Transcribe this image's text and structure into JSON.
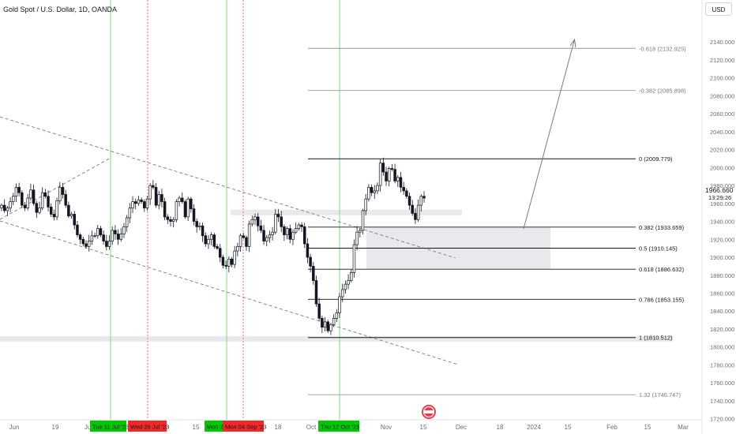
{
  "header": {
    "title": "Gold Spot / U.S. Dollar, 1D, OANDA"
  },
  "axis": {
    "currency_button": "USD"
  },
  "price_tag": {
    "price": "1966.660",
    "countdown": "13:29:26"
  },
  "colors": {
    "up_candle": "#ffffff",
    "down_candle": "#131722",
    "zone": "#e8e9ec",
    "green_marker": "#00c800",
    "red_marker": "#f02828"
  },
  "icons": [
    "tv-logo-icon"
  ],
  "chart_data": {
    "type": "candlestick",
    "symbol": "Gold Spot / U.S. Dollar",
    "interval": "1D",
    "ylim": [
      1710,
      2160
    ],
    "y_ticks": [
      "2140.000",
      "2120.000",
      "2100.000",
      "2080.000",
      "2060.000",
      "2040.000",
      "2020.000",
      "2000.000",
      "1980.000",
      "1960.000",
      "1940.000",
      "1920.000",
      "1900.000",
      "1880.000",
      "1860.000",
      "1840.000",
      "1820.000",
      "1800.000",
      "1780.000",
      "1760.000",
      "1740.000",
      "1720.000"
    ],
    "x_ticks": [
      "Jun",
      "19",
      "Jul",
      "15",
      "Aug",
      "18",
      "Oct",
      "Nov",
      "15",
      "Dec",
      "18",
      "2024",
      "15",
      "Feb",
      "15",
      "Mar"
    ],
    "date_markers": [
      {
        "label": "Tue 11 Jul '23",
        "color": "green"
      },
      {
        "label": "Wed 26 Jul '23",
        "color": "red"
      },
      {
        "label": "Mon 21 Aug '23",
        "color": "green"
      },
      {
        "label": "Mon 04 Sep '23",
        "color": "red"
      },
      {
        "label": "Thu 12 Oct '23",
        "color": "green"
      }
    ],
    "fib_levels": [
      {
        "ratio": "-0.618",
        "price": 2132.925,
        "label": "-0.618 (2132.925)"
      },
      {
        "ratio": "-0.382",
        "price": 2085.898,
        "label": "-0.382 (2085.898)"
      },
      {
        "ratio": "0",
        "price": 2009.779,
        "label": "0 (2009.779)"
      },
      {
        "ratio": "0.382",
        "price": 1933.659,
        "label": "0.382 (1933.659)"
      },
      {
        "ratio": "0.5",
        "price": 1910.145,
        "label": "0.5 (1910.145)"
      },
      {
        "ratio": "0.618",
        "price": 1886.632,
        "label": "0.618 (1886.632)"
      },
      {
        "ratio": "0.786",
        "price": 1853.155,
        "label": "0.786 (1853.155)"
      },
      {
        "ratio": "1",
        "price": 1810.512,
        "label": "1 (1810.512)"
      },
      {
        "ratio": "1.32",
        "price": 1746.747,
        "label": "1.32 (1746.747)"
      }
    ],
    "zones": [
      {
        "from": 1886.632,
        "to": 1933.659
      },
      {
        "from": 1806,
        "to": 1812
      },
      {
        "from": 1947,
        "to": 1953
      }
    ],
    "candles_close": [
      1958,
      1952,
      1955,
      1962,
      1968,
      1978,
      1972,
      1958,
      1955,
      1966,
      1975,
      1960,
      1950,
      1955,
      1972,
      1968,
      1956,
      1948,
      1945,
      1963,
      1978,
      1970,
      1958,
      1946,
      1948,
      1936,
      1925,
      1920,
      1915,
      1912,
      1918,
      1924,
      1924,
      1932,
      1925,
      1918,
      1912,
      1918,
      1930,
      1926,
      1920,
      1926,
      1934,
      1944,
      1955,
      1962,
      1960,
      1964,
      1962,
      1955,
      1965,
      1980,
      1978,
      1958,
      1970,
      1962,
      1945,
      1942,
      1940,
      1942,
      1962,
      1966,
      1962,
      1945,
      1965,
      1954,
      1940,
      1934,
      1935,
      1924,
      1915,
      1920,
      1925,
      1912,
      1910,
      1900,
      1891,
      1890,
      1898,
      1892,
      1907,
      1912,
      1924,
      1922,
      1912,
      1937,
      1942,
      1945,
      1935,
      1930,
      1918,
      1922,
      1925,
      1928,
      1948,
      1945,
      1934,
      1925,
      1932,
      1920,
      1928,
      1932,
      1936,
      1934,
      1915,
      1900,
      1890,
      1874,
      1848,
      1832,
      1822,
      1828,
      1818,
      1825,
      1832,
      1838,
      1856,
      1864,
      1870,
      1874,
      1883,
      1914,
      1928,
      1930,
      1952,
      1965,
      1978,
      1972,
      1974,
      1980,
      2005,
      1995,
      1985,
      1999,
      1998,
      1985,
      1989,
      1978,
      1974,
      1968,
      1958,
      1949,
      1942,
      1958,
      1968,
      1966
    ]
  }
}
